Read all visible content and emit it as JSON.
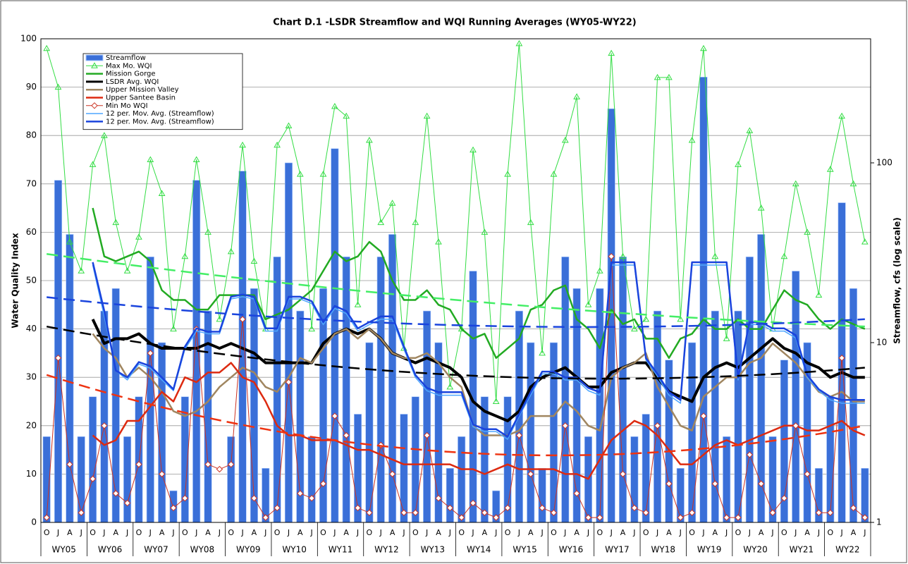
{
  "chart_data": {
    "type": "combo",
    "title": "Chart D.1 -LSDR Streamflow and WQI Running Averages (WY05-WY22)",
    "y_label": "Water Quality Index",
    "y2_label": "Streamflow, cfs (log scale)",
    "ylim": [
      0,
      100
    ],
    "yticks": [
      0,
      10,
      20,
      30,
      40,
      50,
      60,
      70,
      80,
      90,
      100
    ],
    "y2lim": [
      1,
      490
    ],
    "y2ticks": [
      1,
      10,
      100
    ],
    "y2_log": true,
    "grid": true,
    "legend": "top-left",
    "groups": [
      "WY05",
      "WY06",
      "WY07",
      "WY08",
      "WY09",
      "WY10",
      "WY11",
      "WY12",
      "WY13",
      "WY14",
      "WY15",
      "WY16",
      "WY17",
      "WY18",
      "WY19",
      "WY20",
      "WY21",
      "WY22"
    ],
    "categories": [
      "O",
      "J",
      "A",
      "J",
      "O",
      "J",
      "A",
      "J",
      "O",
      "J",
      "A",
      "J",
      "O",
      "J",
      "A",
      "J",
      "O",
      "J",
      "A",
      "J",
      "O",
      "J",
      "A",
      "J",
      "O",
      "J",
      "A",
      "J",
      "O",
      "J",
      "A",
      "J",
      "O",
      "J",
      "A",
      "J",
      "O",
      "J",
      "A",
      "J",
      "O",
      "J",
      "A",
      "J",
      "O",
      "J",
      "A",
      "J",
      "O",
      "J",
      "A",
      "J",
      "O",
      "J",
      "A",
      "J",
      "O",
      "J",
      "A",
      "J",
      "O",
      "J",
      "A",
      "J",
      "O",
      "J",
      "A",
      "J",
      "O",
      "J",
      "A",
      "J"
    ],
    "series": [
      {
        "name": "Streamflow",
        "kind": "bar",
        "axis": "y2",
        "color": "#3a6fd8",
        "values": [
          3,
          80,
          40,
          3,
          5,
          15,
          20,
          3,
          5,
          30,
          10,
          1.5,
          5,
          80,
          15,
          1,
          3,
          90,
          20,
          2,
          30,
          100,
          15,
          3,
          20,
          120,
          30,
          4,
          10,
          30,
          40,
          4,
          5,
          15,
          10,
          2,
          3,
          25,
          5,
          1.5,
          5,
          15,
          10,
          2,
          10,
          30,
          20,
          3,
          20,
          200,
          30,
          3,
          4,
          15,
          8,
          2,
          10,
          300,
          15,
          3,
          15,
          30,
          40,
          3,
          8,
          25,
          10,
          2,
          5,
          60,
          20,
          2
        ]
      },
      {
        "name": "Max Mo. WQI",
        "kind": "line",
        "marker": "triangle",
        "width": 1,
        "color": "#33dd44",
        "values": [
          98,
          90,
          58,
          52,
          74,
          80,
          62,
          52,
          59,
          75,
          68,
          40,
          55,
          75,
          60,
          42,
          56,
          78,
          54,
          40,
          78,
          82,
          72,
          40,
          72,
          86,
          84,
          45,
          79,
          62,
          66,
          36,
          62,
          84,
          58,
          28,
          40,
          77,
          60,
          25,
          72,
          99,
          62,
          35,
          72,
          79,
          88,
          45,
          52,
          97,
          55,
          40,
          42,
          92,
          92,
          42,
          79,
          98,
          55,
          38,
          74,
          81,
          65,
          40,
          55,
          70,
          60,
          47,
          73,
          84,
          70,
          58
        ]
      },
      {
        "name": "Mission Gorge",
        "kind": "line",
        "width": 2.5,
        "color": "#22aa22",
        "values": [
          null,
          null,
          null,
          null,
          65,
          55,
          54,
          55,
          56,
          54,
          48,
          46,
          46,
          44,
          44,
          47,
          47,
          47,
          47,
          42,
          43,
          44,
          46,
          48,
          52,
          56,
          54,
          55,
          58,
          56,
          50,
          46,
          46,
          48,
          45,
          44,
          40,
          38,
          39,
          34,
          36,
          38,
          44,
          45,
          48,
          49,
          42,
          40,
          36,
          44,
          41,
          42,
          38,
          38,
          34,
          38,
          39,
          42,
          40,
          40,
          42,
          40,
          40,
          44,
          48,
          46,
          45,
          42,
          40,
          42,
          41,
          40
        ]
      },
      {
        "name": "LSDR Avg. WQI",
        "kind": "line",
        "width": 4,
        "color": "#000000",
        "values": [
          null,
          null,
          null,
          null,
          42,
          37,
          38,
          38,
          39,
          37,
          36,
          36,
          36,
          36,
          37,
          36,
          37,
          36,
          35,
          33,
          33,
          33,
          33,
          33,
          37,
          39,
          40,
          39,
          40,
          38,
          35,
          34,
          33,
          34,
          33,
          32,
          30,
          25,
          23,
          22,
          21,
          23,
          28,
          30,
          31,
          32,
          30,
          28,
          28,
          31,
          32,
          33,
          33,
          30,
          27,
          26,
          25,
          30,
          32,
          33,
          32,
          34,
          36,
          38,
          36,
          35,
          33,
          32,
          30,
          31,
          30,
          30
        ]
      },
      {
        "name": "Upper Mission Valley",
        "kind": "line",
        "width": 2.5,
        "color": "#a08660",
        "values": [
          null,
          null,
          null,
          null,
          39,
          36,
          34,
          30,
          32,
          30,
          27,
          23,
          22,
          23,
          25,
          28,
          30,
          32,
          31,
          28,
          27,
          30,
          34,
          33,
          36,
          39,
          40,
          38,
          40,
          38,
          35,
          34,
          34,
          35,
          33,
          30,
          28,
          20,
          18,
          18,
          18,
          19,
          22,
          22,
          22,
          25,
          23,
          20,
          19,
          30,
          32,
          33,
          35,
          28,
          24,
          20,
          19,
          26,
          28,
          30,
          30,
          33,
          34,
          37,
          35,
          33,
          30,
          27,
          26,
          27,
          25,
          25
        ]
      },
      {
        "name": "Upper Santee Basin",
        "kind": "line",
        "width": 2.5,
        "color": "#dd2a10",
        "values": [
          null,
          null,
          null,
          null,
          18,
          16,
          17,
          21,
          21,
          24,
          27,
          25,
          30,
          29,
          31,
          31,
          33,
          30,
          29,
          25,
          20,
          18,
          18,
          17,
          17,
          17,
          16,
          15,
          15,
          14,
          13,
          12,
          12,
          12,
          12,
          12,
          11,
          11,
          10,
          11,
          12,
          11,
          11,
          11,
          11,
          10,
          10,
          9,
          13,
          17,
          19,
          21,
          20,
          18,
          15,
          12,
          12,
          14,
          16,
          17,
          16,
          17,
          18,
          19,
          20,
          20,
          19,
          19,
          20,
          21,
          19,
          18
        ]
      },
      {
        "name": "Min Mo WQI",
        "kind": "line",
        "marker": "diamond",
        "width": 1,
        "color": "#cc3322",
        "values": [
          1,
          34,
          12,
          2,
          9,
          20,
          6,
          4,
          12,
          35,
          10,
          3,
          5,
          40,
          12,
          11,
          12,
          42,
          5,
          1,
          3,
          29,
          6,
          5,
          8,
          22,
          18,
          3,
          2,
          16,
          10,
          2,
          2,
          18,
          5,
          3,
          1,
          4,
          2,
          1,
          3,
          18,
          10,
          3,
          2,
          20,
          6,
          1,
          1,
          55,
          10,
          3,
          2,
          20,
          8,
          1,
          2,
          22,
          8,
          1,
          1,
          14,
          8,
          2,
          5,
          20,
          10,
          2,
          2,
          34,
          3,
          1
        ]
      },
      {
        "name": "12 per. Mov. Avg. (Streamflow)",
        "kind": "line",
        "axis": "y2",
        "width": 1.5,
        "color": "#4da6ff",
        "values": [
          null,
          null,
          null,
          null,
          27,
          14,
          7,
          6.2,
          7.6,
          7.2,
          6.2,
          5.4,
          9.2,
          11.6,
          11.2,
          11.2,
          17.5,
          18,
          17.5,
          11.6,
          11.6,
          17.5,
          17.5,
          16.5,
          12.6,
          15.5,
          14.5,
          11.6,
          12.6,
          13.5,
          13.5,
          9.2,
          6.4,
          5.4,
          5.1,
          5.1,
          5.1,
          3.4,
          3.2,
          3.2,
          2.9,
          3.9,
          5.1,
          6.7,
          6.7,
          6.2,
          6.2,
          5.4,
          5.1,
          27,
          27,
          27,
          8,
          6.5,
          5.1,
          4.6,
          27,
          27,
          27,
          27,
          6.2,
          12.6,
          12.6,
          11.6,
          11.6,
          10.6,
          6.4,
          5.4,
          4.8,
          4.6,
          4.6,
          4.6
        ]
      },
      {
        "name": "12 per. Mov. Avg. (Streamflow)",
        "kind": "line",
        "axis": "y2",
        "width": 2.5,
        "color": "#1a44dd",
        "values": [
          null,
          null,
          null,
          null,
          28,
          15,
          7,
          6.4,
          7.8,
          7.4,
          6.4,
          5.5,
          9.5,
          12,
          11.5,
          11.5,
          18,
          18.5,
          18,
          12,
          12,
          18,
          18,
          17,
          13,
          16,
          15,
          12,
          13,
          14,
          14,
          9.5,
          6.6,
          5.6,
          5.3,
          5.3,
          5.3,
          3.5,
          3.3,
          3.3,
          3,
          4,
          5.3,
          6.9,
          6.9,
          6.4,
          6.4,
          5.6,
          5.3,
          28,
          28,
          28,
          8.2,
          6.7,
          5.3,
          4.8,
          28,
          28,
          28,
          28,
          6.4,
          13,
          13,
          12,
          12,
          11,
          6.6,
          5.5,
          5,
          4.8,
          4.8,
          4.8
        ]
      }
    ],
    "trendlines": [
      {
        "color": "#44ee66",
        "values": [
          55.5,
          46,
          40.5
        ]
      },
      {
        "color": "#1a44dd",
        "axis": "y2",
        "values": [
          17.9,
          12.5,
          13.5
        ]
      },
      {
        "color": "#000000",
        "values": [
          40.5,
          30.5,
          32
        ]
      },
      {
        "color": "#ee3311",
        "values": [
          30.5,
          14.5,
          20
        ]
      }
    ]
  }
}
